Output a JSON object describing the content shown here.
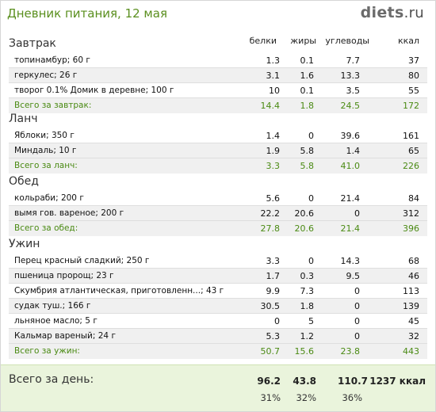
{
  "header": {
    "title": "Дневник питания, 12 мая",
    "brand_name": "diets",
    "brand_tld": ".ru"
  },
  "columns": {
    "protein": "белки",
    "fat": "жиры",
    "carbs": "углеводы",
    "kcal": "ккал"
  },
  "meals": [
    {
      "title": "Завтрак",
      "items": [
        {
          "name": "топинамбур; 60 г",
          "protein": "1.3",
          "fat": "0.1",
          "carbs": "7.7",
          "kcal": "37"
        },
        {
          "name": "геркулес; 26 г",
          "protein": "3.1",
          "fat": "1.6",
          "carbs": "13.3",
          "kcal": "80"
        },
        {
          "name": "творог 0.1% Домик в деревне; 100 г",
          "protein": "10",
          "fat": "0.1",
          "carbs": "3.5",
          "kcal": "55"
        }
      ],
      "total": {
        "name": "Всего за завтрак:",
        "protein": "14.4",
        "fat": "1.8",
        "carbs": "24.5",
        "kcal": "172"
      }
    },
    {
      "title": "Ланч",
      "items": [
        {
          "name": "Яблоки; 350 г",
          "protein": "1.4",
          "fat": "0",
          "carbs": "39.6",
          "kcal": "161"
        },
        {
          "name": "Миндаль; 10 г",
          "protein": "1.9",
          "fat": "5.8",
          "carbs": "1.4",
          "kcal": "65"
        }
      ],
      "total": {
        "name": "Всего за ланч:",
        "protein": "3.3",
        "fat": "5.8",
        "carbs": "41.0",
        "kcal": "226"
      }
    },
    {
      "title": "Обед",
      "items": [
        {
          "name": "кольраби; 200 г",
          "protein": "5.6",
          "fat": "0",
          "carbs": "21.4",
          "kcal": "84"
        },
        {
          "name": "вымя гов. вареное; 200 г",
          "protein": "22.2",
          "fat": "20.6",
          "carbs": "0",
          "kcal": "312"
        }
      ],
      "total": {
        "name": "Всего за обед:",
        "protein": "27.8",
        "fat": "20.6",
        "carbs": "21.4",
        "kcal": "396"
      }
    },
    {
      "title": "Ужин",
      "items": [
        {
          "name": "Перец красный сладкий; 250 г",
          "protein": "3.3",
          "fat": "0",
          "carbs": "14.3",
          "kcal": "68"
        },
        {
          "name": "пшеница пророщ; 23 г",
          "protein": "1.7",
          "fat": "0.3",
          "carbs": "9.5",
          "kcal": "46"
        },
        {
          "name": "Скумбрия атлантическая, приготовленн...; 43 г",
          "protein": "9.9",
          "fat": "7.3",
          "carbs": "0",
          "kcal": "113"
        },
        {
          "name": "судак туш.; 166 г",
          "protein": "30.5",
          "fat": "1.8",
          "carbs": "0",
          "kcal": "139"
        },
        {
          "name": "льняное масло; 5 г",
          "protein": "0",
          "fat": "5",
          "carbs": "0",
          "kcal": "45"
        },
        {
          "name": "Кальмар вареный; 24 г",
          "protein": "5.3",
          "fat": "1.2",
          "carbs": "0",
          "kcal": "32"
        }
      ],
      "total": {
        "name": "Всего за ужин:",
        "protein": "50.7",
        "fat": "15.6",
        "carbs": "23.8",
        "kcal": "443"
      }
    }
  ],
  "day_total": {
    "label": "Всего за день:",
    "protein": "96.2",
    "fat": "43.8",
    "carbs": "110.7",
    "kcal": "1237 ккал",
    "protein_pct": "31%",
    "fat_pct": "32%",
    "carbs_pct": "36%"
  }
}
